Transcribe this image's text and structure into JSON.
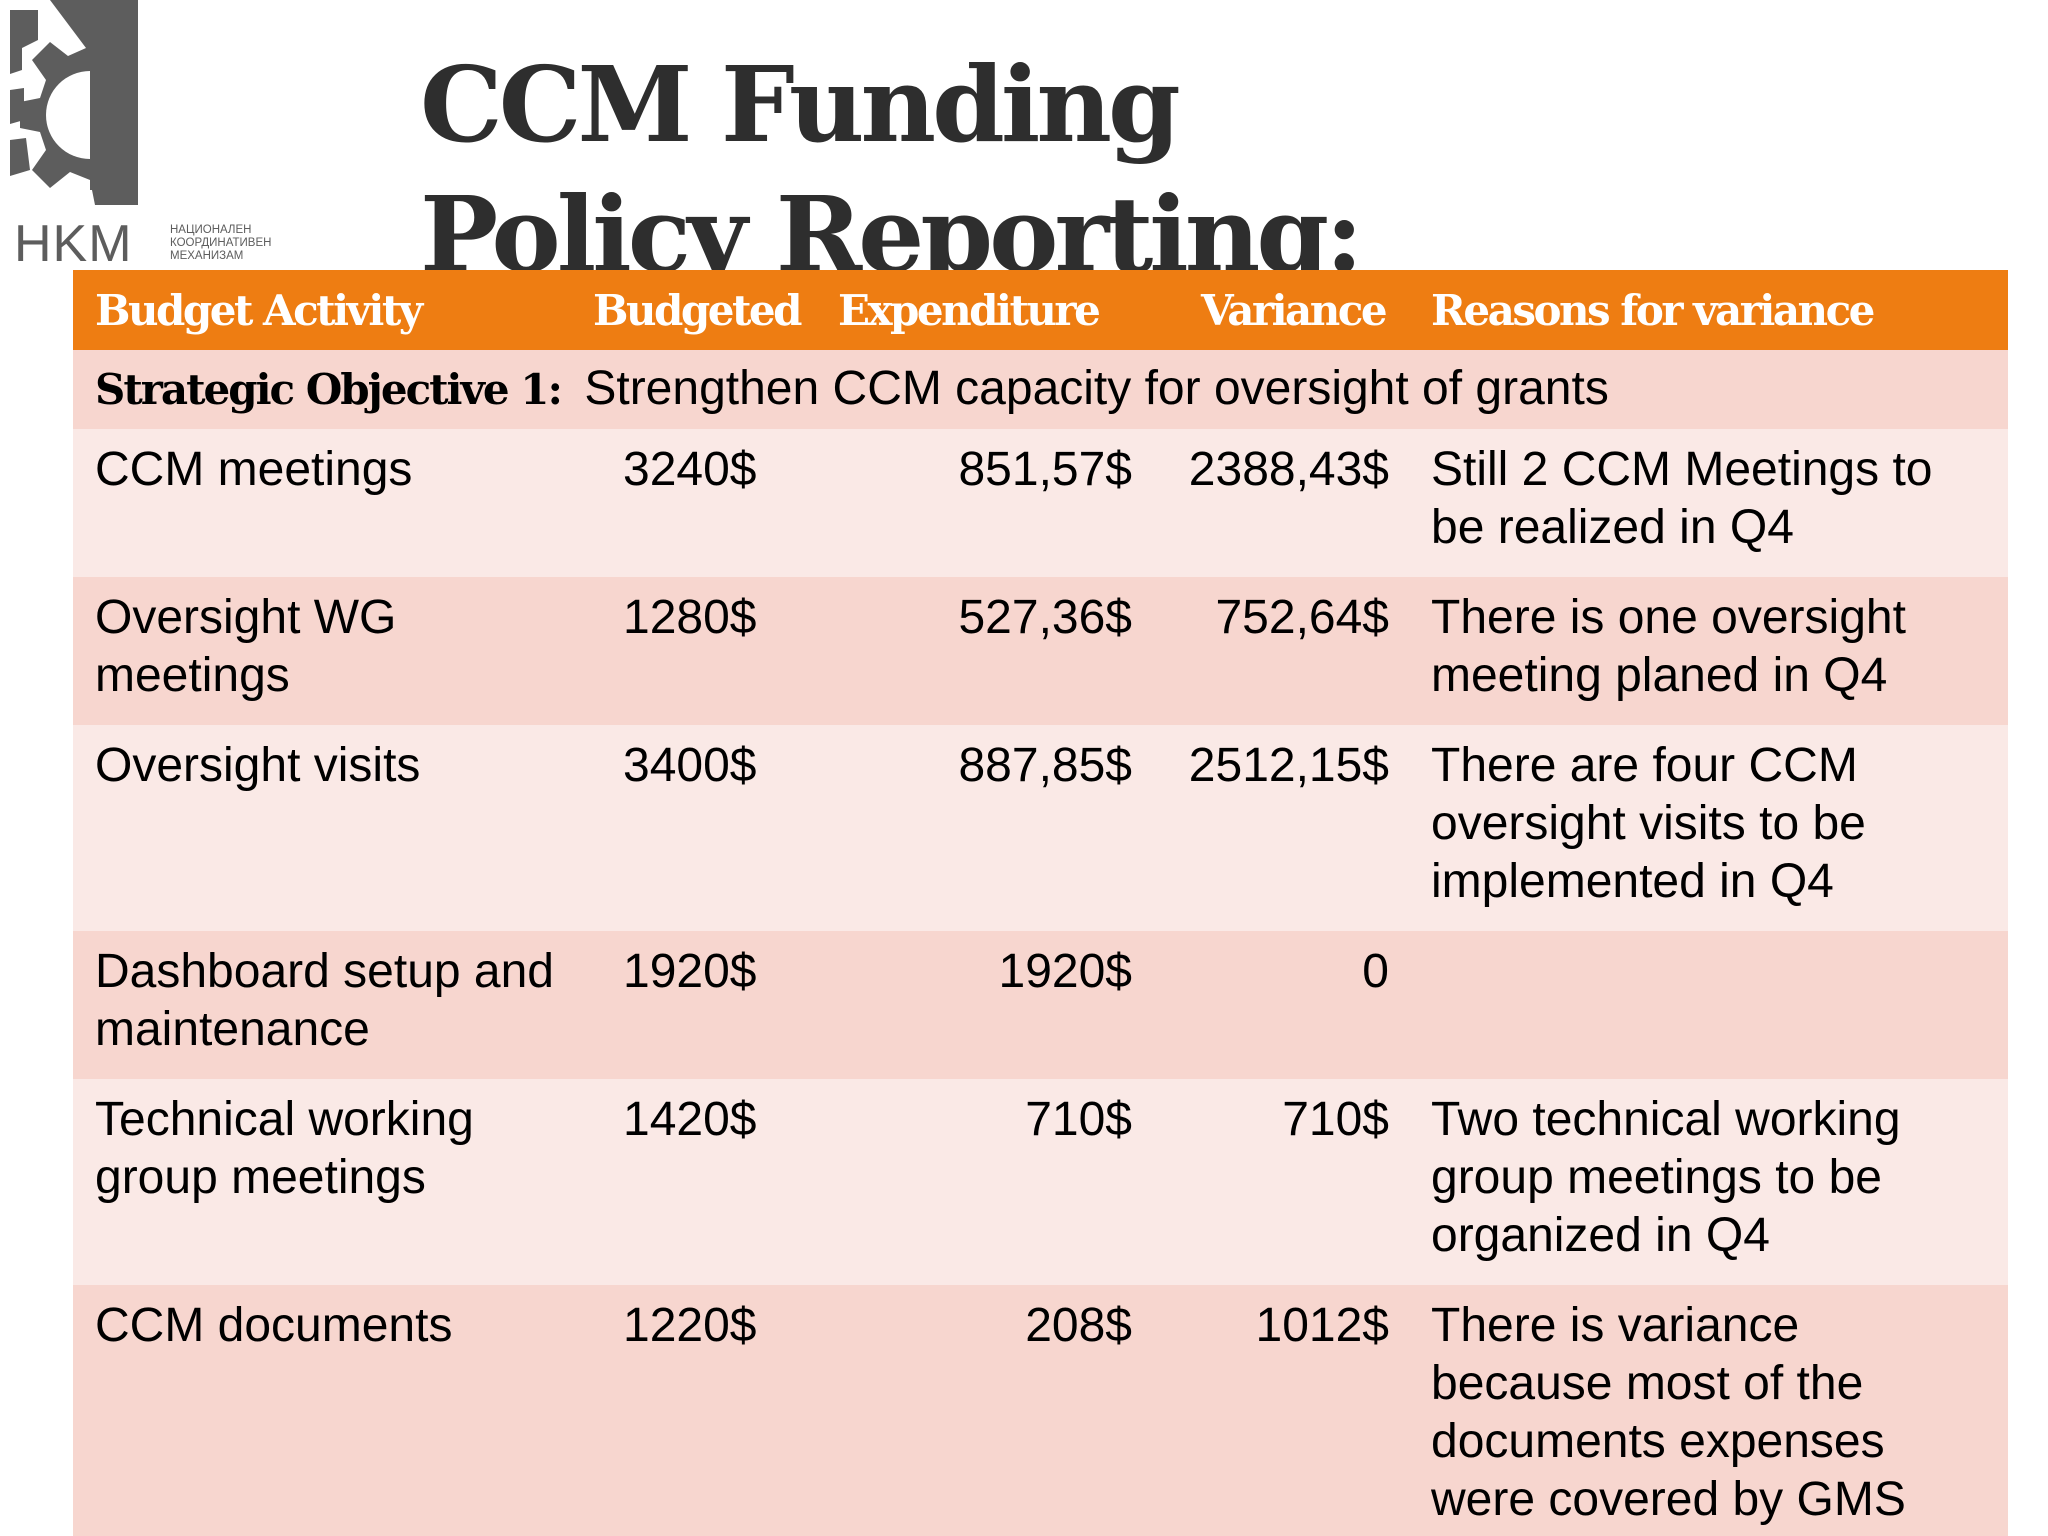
{
  "logo": {
    "letters": "HKM",
    "subtitle_lines": [
      "НАЦИОНАЛЕН",
      "КООРДИНАТИВЕН",
      "МЕХАНИЗАМ"
    ]
  },
  "title": "CCM Funding Policy Reporting:",
  "table": {
    "headers": [
      "Budget Activity",
      "Budgeted",
      "Expenditure",
      "Variance",
      "Reasons for variance"
    ],
    "objective": {
      "label": "Strategic Objective 1:",
      "text": "Strengthen CCM capacity for oversight of grants"
    },
    "rows": [
      {
        "activity": "CCM meetings",
        "budgeted": "3240$",
        "expenditure": "851,57$",
        "variance": "2388,43$",
        "reason": "Still 2 CCM Meetings to be realized in Q4"
      },
      {
        "activity": "Oversight WG meetings",
        "budgeted": "1280$",
        "expenditure": "527,36$",
        "variance": "752,64$",
        "reason": "There is one  oversight meeting planed in Q4"
      },
      {
        "activity": "Oversight visits",
        "budgeted": "3400$",
        "expenditure": "887,85$",
        "variance": "2512,15$",
        "reason": "There are four CCM oversight visits to be implemented in Q4"
      },
      {
        "activity": "Dashboard setup and maintenance",
        "budgeted": "1920$",
        "expenditure": "1920$",
        "variance": "0",
        "reason": ""
      },
      {
        "activity": "Technical working group meetings",
        "budgeted": "1420$",
        "expenditure": "710$",
        "variance": "710$",
        "reason": "Two technical working group meetings  to be organized in Q4"
      },
      {
        "activity": "CCM documents",
        "budgeted": "1220$",
        "expenditure": "208$",
        "variance": "1012$",
        "reason": "There  is variance because most of the documents expenses were covered by GMS"
      }
    ]
  },
  "colors": {
    "header_orange": "#ee7d12",
    "row_dark": "#f7d6cf",
    "row_light": "#fae9e6",
    "title_text": "#2e2e2e",
    "logo_gray": "#5d5d5d"
  }
}
